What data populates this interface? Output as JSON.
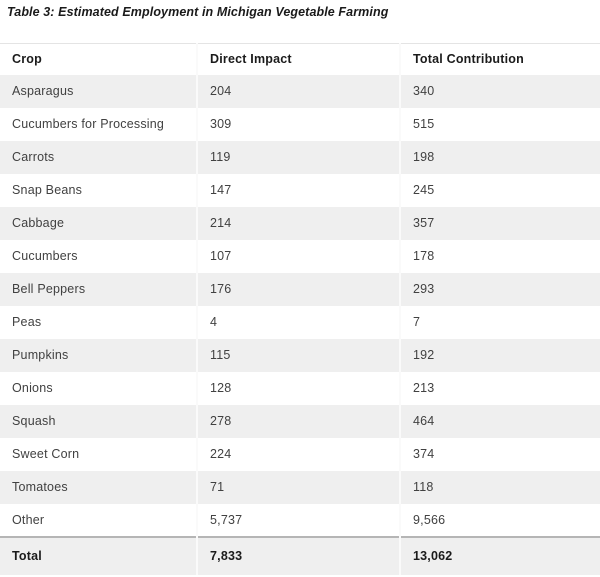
{
  "title": "Table 3: Estimated Employment in Michigan Vegetable Farming",
  "table": {
    "columns": [
      "Crop",
      "Direct Impact",
      "Total Contribution"
    ],
    "rows": [
      [
        "Asparagus",
        "204",
        "340"
      ],
      [
        "Cucumbers for Processing",
        "309",
        "515"
      ],
      [
        "Carrots",
        "119",
        "198"
      ],
      [
        "Snap Beans",
        "147",
        "245"
      ],
      [
        "Cabbage",
        "214",
        "357"
      ],
      [
        "Cucumbers",
        "107",
        "178"
      ],
      [
        "Bell Peppers",
        "176",
        "293"
      ],
      [
        "Peas",
        "4",
        "7"
      ],
      [
        "Pumpkins",
        "115",
        "192"
      ],
      [
        "Onions",
        "128",
        "213"
      ],
      [
        "Squash",
        "278",
        "464"
      ],
      [
        "Sweet Corn",
        "224",
        "374"
      ],
      [
        "Tomatoes",
        "71",
        "118"
      ],
      [
        "Other",
        "5,737",
        "9,566"
      ]
    ],
    "total": [
      "Total",
      "7,833",
      "13,062"
    ]
  },
  "colors": {
    "stripe_row_bg": "#efefef",
    "plain_row_bg": "#ffffff",
    "header_text": "#1b1b1b",
    "body_text": "#414141",
    "column_gutter": "#fafafa",
    "total_top_border": "#b5b5b5",
    "header_top_border": "#e4e4e4"
  },
  "chart_data": {
    "type": "table",
    "title": "Table 3: Estimated Employment in Michigan Vegetable Farming",
    "columns": [
      "Crop",
      "Direct Impact",
      "Total Contribution"
    ],
    "rows": [
      [
        "Asparagus",
        204,
        340
      ],
      [
        "Cucumbers for Processing",
        309,
        515
      ],
      [
        "Carrots",
        119,
        198
      ],
      [
        "Snap Beans",
        147,
        245
      ],
      [
        "Cabbage",
        214,
        357
      ],
      [
        "Cucumbers",
        107,
        178
      ],
      [
        "Bell Peppers",
        176,
        293
      ],
      [
        "Peas",
        4,
        7
      ],
      [
        "Pumpkins",
        115,
        192
      ],
      [
        "Onions",
        128,
        213
      ],
      [
        "Squash",
        278,
        464
      ],
      [
        "Sweet Corn",
        224,
        374
      ],
      [
        "Tomatoes",
        71,
        118
      ],
      [
        "Other",
        5737,
        9566
      ]
    ],
    "total_row": [
      "Total",
      7833,
      13062
    ]
  }
}
